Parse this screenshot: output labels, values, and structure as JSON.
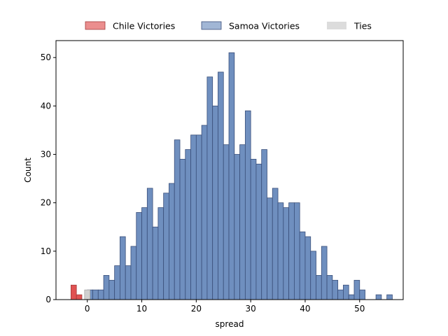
{
  "chart_data": {
    "type": "bar",
    "xlabel": "spread",
    "ylabel": "Count",
    "xlim": [
      -5.75,
      58.0
    ],
    "ylim": [
      0,
      53.5
    ],
    "x_ticks": [
      0,
      10,
      20,
      30,
      40,
      50
    ],
    "y_ticks": [
      0,
      10,
      20,
      30,
      40,
      50
    ],
    "bin_width": 1,
    "grid": false,
    "legend_position": "top-center",
    "series": [
      {
        "name": "Chile Victories",
        "color": "#e05252",
        "edge_color": "#a33a3a",
        "bin_starts": [
          -3,
          -2
        ],
        "values": [
          3,
          1
        ]
      },
      {
        "name": "Samoa Victories",
        "color": "#6f8fbf",
        "edge_color": "#3a4f7a",
        "bin_starts": [
          0,
          1,
          2,
          3,
          4,
          5,
          6,
          7,
          8,
          9,
          10,
          11,
          12,
          13,
          14,
          15,
          16,
          17,
          18,
          19,
          20,
          21,
          22,
          23,
          24,
          25,
          26,
          27,
          28,
          29,
          30,
          31,
          32,
          33,
          34,
          35,
          36,
          37,
          38,
          39,
          40,
          41,
          42,
          43,
          44,
          45,
          46,
          47,
          48,
          49,
          50,
          53,
          55
        ],
        "values": [
          2,
          2,
          2,
          5,
          4,
          7,
          13,
          7,
          11,
          18,
          19,
          23,
          15,
          19,
          22,
          24,
          33,
          29,
          31,
          34,
          34,
          36,
          46,
          40,
          47,
          32,
          51,
          30,
          32,
          39,
          29,
          28,
          31,
          21,
          23,
          20,
          19,
          20,
          20,
          14,
          13,
          10,
          5,
          11,
          5,
          4,
          2,
          3,
          1,
          4,
          2,
          1,
          1
        ]
      },
      {
        "name": "Ties",
        "color": "#d0d0d0",
        "edge_color": "#a8a8a8",
        "bin_starts": [
          -0.5
        ],
        "values": [
          2
        ]
      }
    ]
  }
}
